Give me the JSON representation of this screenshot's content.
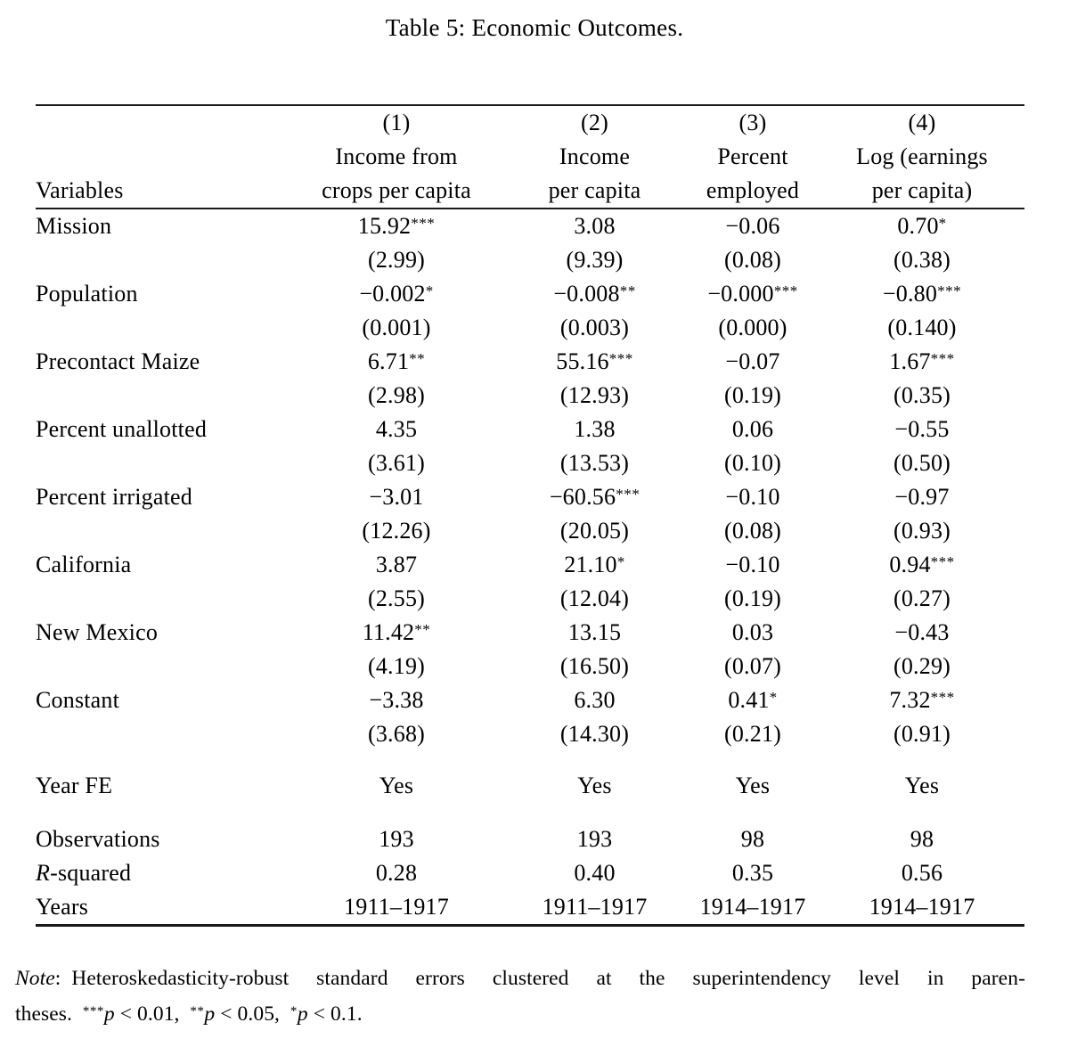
{
  "title": "Table 5: Economic Outcomes.",
  "table": {
    "variables_header": "Variables",
    "columns": [
      {
        "number": "(1)",
        "line1": "Income from",
        "line2": "crops per capita"
      },
      {
        "number": "(2)",
        "line1": "Income",
        "line2": "per capita"
      },
      {
        "number": "(3)",
        "line1": "Percent",
        "line2": "employed"
      },
      {
        "number": "(4)",
        "line1": "Log (earnings",
        "line2": "per capita)"
      }
    ],
    "coefficients": [
      {
        "variable": "Mission",
        "estimates": [
          {
            "value": "15.92",
            "stars": "***"
          },
          {
            "value": "3.08",
            "stars": ""
          },
          {
            "value": "−0.06",
            "stars": ""
          },
          {
            "value": "0.70",
            "stars": "*"
          }
        ],
        "std_errors": [
          "(2.99)",
          "(9.39)",
          "(0.08)",
          "(0.38)"
        ]
      },
      {
        "variable": "Population",
        "estimates": [
          {
            "value": "−0.002",
            "stars": "*"
          },
          {
            "value": "−0.008",
            "stars": "**"
          },
          {
            "value": "−0.000",
            "stars": "***"
          },
          {
            "value": "−0.80",
            "stars": "***"
          }
        ],
        "std_errors": [
          "(0.001)",
          "(0.003)",
          "(0.000)",
          "(0.140)"
        ]
      },
      {
        "variable": "Precontact Maize",
        "estimates": [
          {
            "value": "6.71",
            "stars": "**"
          },
          {
            "value": "55.16",
            "stars": "***"
          },
          {
            "value": "−0.07",
            "stars": ""
          },
          {
            "value": "1.67",
            "stars": "***"
          }
        ],
        "std_errors": [
          "(2.98)",
          "(12.93)",
          "(0.19)",
          "(0.35)"
        ]
      },
      {
        "variable": "Percent unallotted",
        "estimates": [
          {
            "value": "4.35",
            "stars": ""
          },
          {
            "value": "1.38",
            "stars": ""
          },
          {
            "value": "0.06",
            "stars": ""
          },
          {
            "value": "−0.55",
            "stars": ""
          }
        ],
        "std_errors": [
          "(3.61)",
          "(13.53)",
          "(0.10)",
          "(0.50)"
        ]
      },
      {
        "variable": "Percent irrigated",
        "estimates": [
          {
            "value": "−3.01",
            "stars": ""
          },
          {
            "value": "−60.56",
            "stars": "***"
          },
          {
            "value": "−0.10",
            "stars": ""
          },
          {
            "value": "−0.97",
            "stars": ""
          }
        ],
        "std_errors": [
          "(12.26)",
          "(20.05)",
          "(0.08)",
          "(0.93)"
        ]
      },
      {
        "variable": "California",
        "estimates": [
          {
            "value": "3.87",
            "stars": ""
          },
          {
            "value": "21.10",
            "stars": "*"
          },
          {
            "value": "−0.10",
            "stars": ""
          },
          {
            "value": "0.94",
            "stars": "***"
          }
        ],
        "std_errors": [
          "(2.55)",
          "(12.04)",
          "(0.19)",
          "(0.27)"
        ]
      },
      {
        "variable": "New Mexico",
        "estimates": [
          {
            "value": "11.42",
            "stars": "**"
          },
          {
            "value": "13.15",
            "stars": ""
          },
          {
            "value": "0.03",
            "stars": ""
          },
          {
            "value": "−0.43",
            "stars": ""
          }
        ],
        "std_errors": [
          "(4.19)",
          "(16.50)",
          "(0.07)",
          "(0.29)"
        ]
      },
      {
        "variable": "Constant",
        "estimates": [
          {
            "value": "−3.38",
            "stars": ""
          },
          {
            "value": "6.30",
            "stars": ""
          },
          {
            "value": "0.41",
            "stars": "*"
          },
          {
            "value": "7.32",
            "stars": "***"
          }
        ],
        "std_errors": [
          "(3.68)",
          "(14.30)",
          "(0.21)",
          "(0.91)"
        ]
      }
    ],
    "year_fe": {
      "label": "Year FE",
      "values": [
        "Yes",
        "Yes",
        "Yes",
        "Yes"
      ]
    },
    "stats": [
      {
        "label_italic": "",
        "label_text": "Observations",
        "values": [
          "193",
          "193",
          "98",
          "98"
        ]
      },
      {
        "label_italic": "R",
        "label_text": "-squared",
        "values": [
          "0.28",
          "0.40",
          "0.35",
          "0.56"
        ]
      },
      {
        "label_italic": "",
        "label_text": "Years",
        "values": [
          "1911–1917",
          "1911–1917",
          "1914–1917",
          "1914–1917"
        ]
      }
    ]
  },
  "note": {
    "label": "Note",
    "body": ": Heteroskedasticity-robust standard errors clustered at the superintendency level in paren-",
    "line2_prefix": "theses. ",
    "sig_levels": [
      {
        "stars": "***",
        "p": "p",
        "cond": " < 0.01, "
      },
      {
        "stars": "**",
        "p": "p",
        "cond": " < 0.05, "
      },
      {
        "stars": "*",
        "p": "p",
        "cond": " < 0.1."
      }
    ]
  }
}
